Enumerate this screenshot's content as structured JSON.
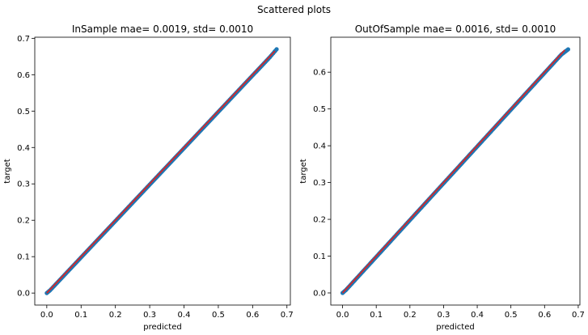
{
  "figure": {
    "suptitle": "Scattered plots"
  },
  "chart_data": [
    {
      "type": "scatter",
      "title": "InSample mae=  0.0019, std=  0.0010",
      "xlabel": "predicted",
      "ylabel": "target",
      "xlim": [
        -0.035,
        0.71
      ],
      "ylim": [
        -0.033,
        0.703
      ],
      "xticks": [
        0.0,
        0.1,
        0.2,
        0.3,
        0.4,
        0.5,
        0.6,
        0.7
      ],
      "xtick_labels": [
        "0.0",
        "0.1",
        "0.2",
        "0.3",
        "0.4",
        "0.5",
        "0.6",
        "0.7"
      ],
      "yticks": [
        0.0,
        0.1,
        0.2,
        0.3,
        0.4,
        0.5,
        0.6,
        0.7
      ],
      "ytick_labels": [
        "0.0",
        "0.1",
        "0.2",
        "0.3",
        "0.4",
        "0.5",
        "0.6",
        "0.7"
      ],
      "grid": false,
      "series": [
        {
          "kind": "points",
          "color": "#1f77b4",
          "x": [
            0.0,
            0.01,
            0.02,
            0.03,
            0.05,
            0.08,
            0.1,
            0.13,
            0.15,
            0.18,
            0.2,
            0.23,
            0.25,
            0.28,
            0.3,
            0.33,
            0.35,
            0.38,
            0.4,
            0.43,
            0.45,
            0.48,
            0.5,
            0.53,
            0.55,
            0.58,
            0.6,
            0.63,
            0.65,
            0.67
          ],
          "y": [
            0.0,
            0.008,
            0.018,
            0.028,
            0.048,
            0.078,
            0.098,
            0.128,
            0.148,
            0.178,
            0.198,
            0.228,
            0.248,
            0.278,
            0.298,
            0.328,
            0.348,
            0.378,
            0.398,
            0.428,
            0.448,
            0.478,
            0.498,
            0.528,
            0.548,
            0.578,
            0.598,
            0.628,
            0.648,
            0.67
          ]
        },
        {
          "kind": "line",
          "color": "#d62728",
          "x": [
            0.0,
            0.665
          ],
          "y": [
            0.0,
            0.665
          ]
        }
      ]
    },
    {
      "type": "scatter",
      "title": "OutOfSample mae=  0.0016, std=  0.0010",
      "xlabel": "predicted",
      "ylabel": "target",
      "xlim": [
        -0.035,
        0.705
      ],
      "ylim": [
        -0.033,
        0.695
      ],
      "xticks": [
        0.0,
        0.1,
        0.2,
        0.3,
        0.4,
        0.5,
        0.6,
        0.7
      ],
      "xtick_labels": [
        "0.0",
        "0.1",
        "0.2",
        "0.3",
        "0.4",
        "0.5",
        "0.6",
        "0.7"
      ],
      "yticks": [
        0.0,
        0.1,
        0.2,
        0.3,
        0.4,
        0.5,
        0.6
      ],
      "ytick_labels": [
        "0.0",
        "0.1",
        "0.2",
        "0.3",
        "0.4",
        "0.5",
        "0.6"
      ],
      "grid": false,
      "series": [
        {
          "kind": "points",
          "color": "#1f77b4",
          "x": [
            0.0,
            0.01,
            0.02,
            0.03,
            0.05,
            0.08,
            0.1,
            0.13,
            0.15,
            0.18,
            0.2,
            0.23,
            0.25,
            0.28,
            0.3,
            0.33,
            0.35,
            0.38,
            0.4,
            0.43,
            0.45,
            0.48,
            0.5,
            0.53,
            0.55,
            0.58,
            0.6,
            0.63,
            0.65,
            0.67
          ],
          "y": [
            0.0,
            0.008,
            0.018,
            0.028,
            0.048,
            0.078,
            0.098,
            0.128,
            0.148,
            0.178,
            0.198,
            0.228,
            0.248,
            0.278,
            0.298,
            0.328,
            0.348,
            0.378,
            0.398,
            0.428,
            0.448,
            0.478,
            0.498,
            0.528,
            0.548,
            0.578,
            0.598,
            0.628,
            0.648,
            0.662
          ]
        },
        {
          "kind": "line",
          "color": "#d62728",
          "x": [
            0.0,
            0.66
          ],
          "y": [
            0.0,
            0.66
          ]
        }
      ]
    }
  ]
}
